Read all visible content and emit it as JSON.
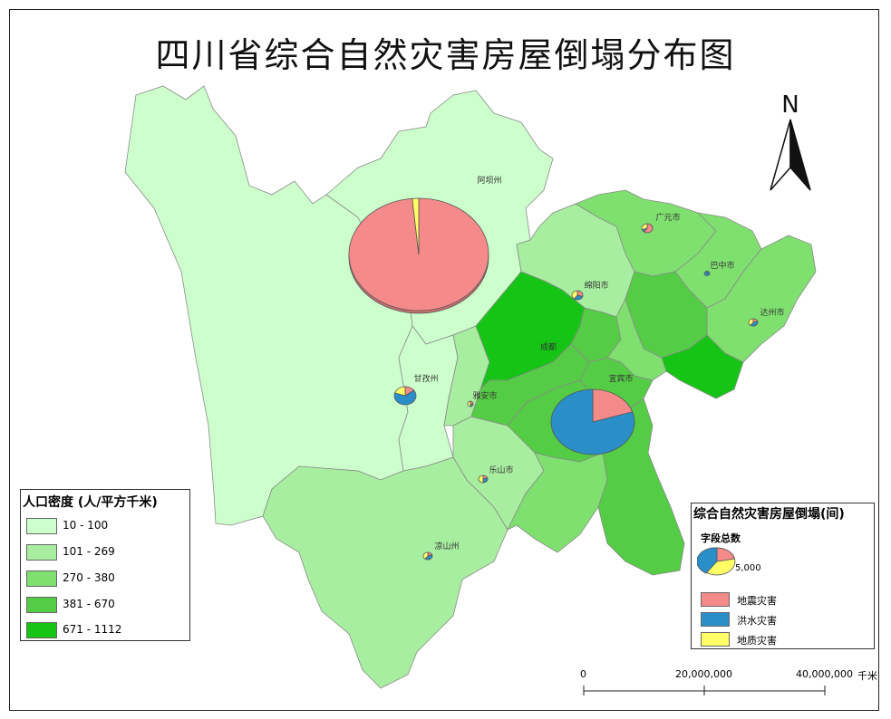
{
  "title": "四川省综合自然灾害房屋倒塌分布图",
  "north_label": "N",
  "population_legend": {
    "title": "人口密度 (人/平方千米)",
    "classes": [
      {
        "label": "10 - 100",
        "color": "#ccffcc"
      },
      {
        "label": "101 - 269",
        "color": "#a8eea0"
      },
      {
        "label": "270 - 380",
        "color": "#7fe070"
      },
      {
        "label": "381 - 670",
        "color": "#55cc45"
      },
      {
        "label": "671 - 1112",
        "color": "#15c415"
      }
    ]
  },
  "disaster_legend": {
    "title": "综合自然灾害房屋倒塌(间)",
    "field_label": "字段总数",
    "size_label": "5,000",
    "categories": [
      {
        "label": "地震灾害",
        "color": "#f48a8a"
      },
      {
        "label": "洪水灾害",
        "color": "#2a8fc8"
      },
      {
        "label": "地质灾害",
        "color": "#ffff66"
      }
    ]
  },
  "scale_bar": {
    "labels": [
      "0",
      "20,000,000",
      "40,000,000"
    ],
    "unit": "千米"
  },
  "cities": [
    {
      "name": "阿坝州"
    },
    {
      "name": "广元市"
    },
    {
      "name": "巴中市"
    },
    {
      "name": "绵阳市"
    },
    {
      "name": "达州市"
    },
    {
      "name": "成都"
    },
    {
      "name": "甘孜州"
    },
    {
      "name": "雅安市"
    },
    {
      "name": "宜宾市"
    },
    {
      "name": "乐山市"
    },
    {
      "name": "凉山州"
    }
  ]
}
